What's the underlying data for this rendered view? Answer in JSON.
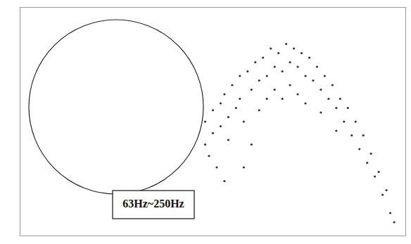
{
  "chart_data": {
    "type": "scatter",
    "tick_labels": false,
    "xlim": [
      0,
      100
    ],
    "ylim": [
      0,
      100
    ],
    "xticks": [],
    "yticks": [],
    "color": "#333333",
    "annotations": [
      {
        "text": "63Hz~250Hz"
      }
    ],
    "x": [
      48,
      48,
      49,
      50,
      50,
      51,
      52,
      52,
      53,
      53,
      54,
      54,
      55,
      56,
      57,
      57,
      58,
      58,
      59,
      60,
      60,
      61,
      62,
      62,
      63,
      64,
      64,
      65,
      66,
      66,
      67,
      68,
      68,
      69,
      70,
      70,
      71,
      72,
      72,
      73,
      74,
      74,
      75,
      76,
      77,
      78,
      78,
      79,
      80,
      81,
      82,
      82,
      83,
      84,
      85,
      86,
      87,
      88,
      89,
      90,
      91,
      92,
      93,
      94,
      95,
      96,
      97
    ],
    "values": [
      40,
      50,
      35,
      55,
      45,
      30,
      58,
      48,
      62,
      24,
      52,
      42,
      66,
      56,
      70,
      60,
      50,
      30,
      72,
      64,
      40,
      76,
      68,
      55,
      78,
      70,
      60,
      82,
      74,
      64,
      80,
      72,
      60,
      84,
      76,
      66,
      82,
      74,
      62,
      80,
      70,
      58,
      78,
      68,
      74,
      64,
      54,
      70,
      60,
      66,
      56,
      46,
      60,
      50,
      56,
      44,
      50,
      38,
      44,
      32,
      36,
      26,
      28,
      18,
      20,
      10,
      6
    ]
  }
}
